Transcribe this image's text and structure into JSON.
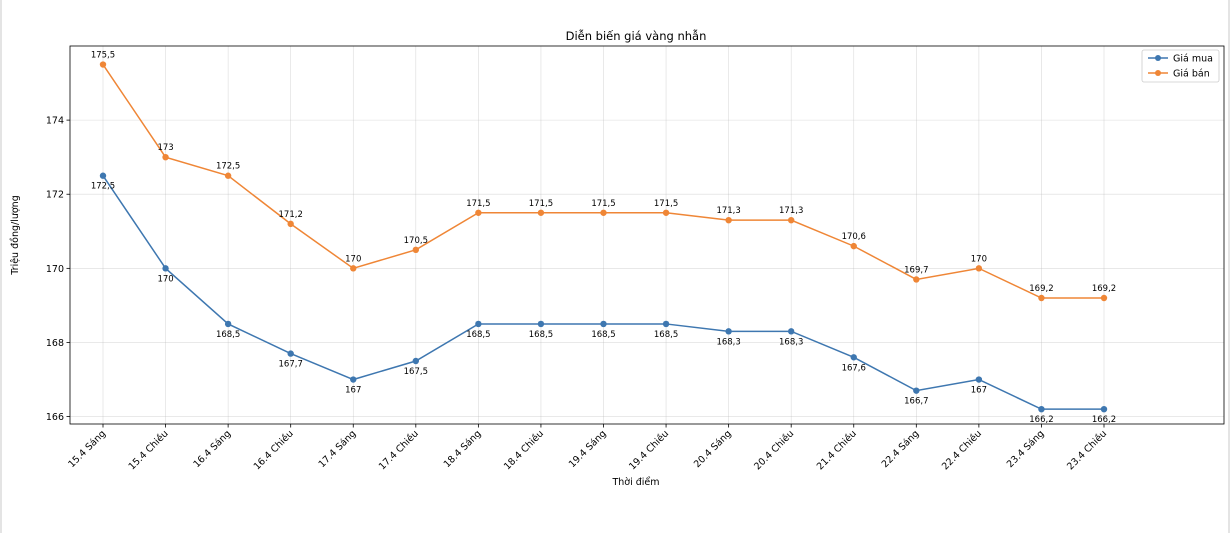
{
  "chart_data": {
    "type": "line",
    "title": "Diễn biến giá vàng nhẫn",
    "xlabel": "Thời điểm",
    "ylabel": "Triệu đồng/lượng",
    "categories": [
      "15.4 Sáng",
      "15.4 Chiều",
      "16.4 Sáng",
      "16.4 Chiều",
      "17.4 Sáng",
      "17.4 Chiều",
      "18.4 Sáng",
      "18.4 Chiều",
      "19.4 Sáng",
      "19.4 Chiều",
      "20.4 Sáng",
      "20.4 Chiều",
      "21.4 Chiều",
      "22.4 Sáng",
      "22.4 Chiều",
      "23.4 Sáng",
      "23.4 Chiều"
    ],
    "ylim": [
      165.8,
      176.0
    ],
    "yticks": [
      166,
      168,
      170,
      172,
      174
    ],
    "yticks_labels": [
      "166",
      "168",
      "170",
      "172",
      "174"
    ],
    "grid": true,
    "legend_position": "top-right",
    "series": [
      {
        "name": "Giá mua",
        "color": "#3e77b0",
        "label_position": "below",
        "values": [
          172.5,
          170,
          168.5,
          167.7,
          167,
          167.5,
          168.5,
          168.5,
          168.5,
          168.5,
          168.3,
          168.3,
          167.6,
          166.7,
          167,
          166.2,
          166.2
        ],
        "labels": [
          "172,5",
          "170",
          "168,5",
          "167,7",
          "167",
          "167,5",
          "168,5",
          "168,5",
          "168,5",
          "168,5",
          "168,3",
          "168,3",
          "167,6",
          "166,7",
          "167",
          "166,2",
          "166,2"
        ]
      },
      {
        "name": "Giá bán",
        "color": "#ef8636",
        "label_position": "above",
        "values": [
          175.5,
          173,
          172.5,
          171.2,
          170,
          170.5,
          171.5,
          171.5,
          171.5,
          171.5,
          171.3,
          171.3,
          170.6,
          169.7,
          170,
          169.2,
          169.2
        ],
        "labels": [
          "175,5",
          "173",
          "172,5",
          "171,2",
          "170",
          "170,5",
          "171,5",
          "171,5",
          "171,5",
          "171,5",
          "171,3",
          "171,3",
          "170,6",
          "169,7",
          "170",
          "169,2",
          "169,2"
        ]
      }
    ]
  }
}
